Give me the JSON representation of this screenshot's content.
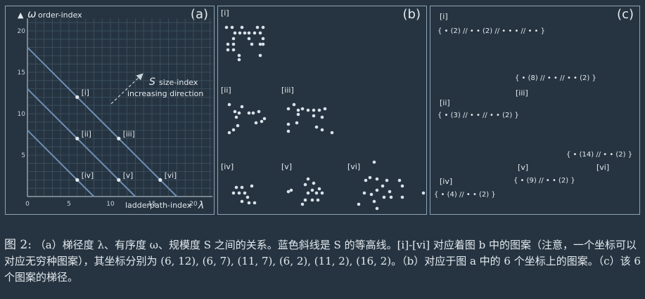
{
  "panels": {
    "a": {
      "label": "(a)",
      "y_axis_symbol": "ω",
      "y_axis_label": "order-index",
      "x_axis_label": "ladderpath-index",
      "x_axis_symbol": "λ",
      "s_symbol": "S",
      "s_label_1": "size-index",
      "s_label_2": "increasing direction"
    },
    "b": {
      "label": "(b)"
    },
    "c": {
      "label": "(c)"
    }
  },
  "chart_data": {
    "type": "line",
    "xlim": [
      0,
      22
    ],
    "ylim": [
      0,
      21
    ],
    "x_ticks": [
      0,
      5,
      10,
      15,
      20
    ],
    "y_ticks": [
      5,
      10,
      15,
      20
    ],
    "grid": true,
    "series": [
      {
        "x": [
          0,
          18
        ],
        "y": [
          18,
          0
        ]
      },
      {
        "x": [
          0,
          13
        ],
        "y": [
          13,
          0
        ]
      },
      {
        "x": [
          0,
          8
        ],
        "y": [
          8,
          0
        ]
      }
    ],
    "points": [
      {
        "label": "[i]",
        "x": 6,
        "y": 12
      },
      {
        "label": "[ii]",
        "x": 6,
        "y": 7
      },
      {
        "label": "[iii]",
        "x": 11,
        "y": 7
      },
      {
        "label": "[iv]",
        "x": 6,
        "y": 2
      },
      {
        "label": "[v]",
        "x": 11,
        "y": 2
      },
      {
        "label": "[vi]",
        "x": 16,
        "y": 2
      }
    ],
    "colors": {
      "line": "#6f8fb3",
      "grid": "#3e5263",
      "axis": "#c9d3db"
    }
  },
  "patterns": {
    "i": "[i]",
    "ii": "[ii]",
    "iii": "[iii]",
    "iv": "[iv]",
    "v": "[v]",
    "vi": "[vi]"
  },
  "ladderpaths": {
    "i": {
      "label": "[i]",
      "text": "{ • (2) // • • (2) // • •   • //  • • }"
    },
    "iii": {
      "label": "[iii]",
      "text": "{ • (8) // • • // • • (2) }"
    },
    "ii": {
      "label": "[ii]",
      "text": "{ • (3) // • • // • • (2) }"
    },
    "vi": {
      "label": "[vi]",
      "text": "{ • (14) // • • (2) }"
    },
    "v": {
      "label": "[v]",
      "text": "{ • (9) // • • (2) }"
    },
    "iv": {
      "label": "[iv]",
      "text": "{ • (4) // • • (2) }"
    }
  },
  "caption": {
    "fig_label": "图 2:",
    "text": "（a）梯径度 λ、有序度 ω、规模度 S 之间的关系。蓝色斜线是 S 的等高线。[i]-[vi] 对应着图 b 中的图案（注意，一个坐标可以对应无穷种图案），其坐标分别为 (6, 12), (6, 7), (11, 7), (6, 2), (11, 2), (16, 2)。（b）对应于图 a 中的 6 个坐标上的图案。（c）该 6 个图案的梯径。"
  }
}
